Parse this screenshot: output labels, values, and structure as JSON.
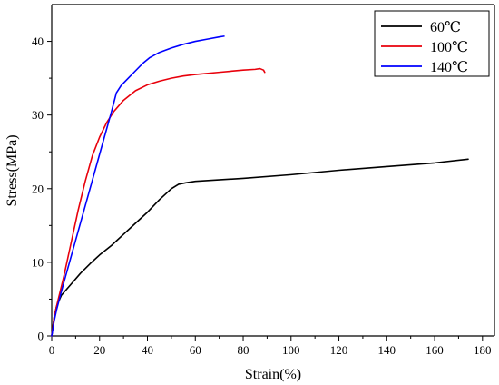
{
  "chart_data": {
    "type": "line",
    "xlabel": "Strain(%)",
    "ylabel": "Stress(MPa)",
    "xlim": [
      0,
      185
    ],
    "ylim": [
      0,
      45
    ],
    "xticks": [
      0,
      20,
      40,
      60,
      80,
      100,
      120,
      140,
      160,
      180
    ],
    "yticks": [
      0,
      10,
      20,
      30,
      40
    ],
    "grid": false,
    "legend_position": "top-right",
    "series": [
      {
        "name": "60℃",
        "color": "#000000",
        "points": [
          [
            0,
            0
          ],
          [
            1,
            2.5
          ],
          [
            2,
            4
          ],
          [
            4,
            5.5
          ],
          [
            8,
            7
          ],
          [
            12,
            8.5
          ],
          [
            16,
            9.8
          ],
          [
            20,
            11
          ],
          [
            25,
            12.3
          ],
          [
            30,
            13.8
          ],
          [
            35,
            15.3
          ],
          [
            40,
            16.8
          ],
          [
            45,
            18.5
          ],
          [
            50,
            20
          ],
          [
            53,
            20.6
          ],
          [
            56,
            20.8
          ],
          [
            60,
            21
          ],
          [
            80,
            21.4
          ],
          [
            100,
            21.9
          ],
          [
            120,
            22.5
          ],
          [
            140,
            23
          ],
          [
            160,
            23.5
          ],
          [
            174,
            24
          ]
        ]
      },
      {
        "name": "100℃",
        "color": "#e8000b",
        "points": [
          [
            0,
            0
          ],
          [
            1,
            2.5
          ],
          [
            2,
            4
          ],
          [
            5,
            8
          ],
          [
            8,
            12.5
          ],
          [
            11,
            17
          ],
          [
            14,
            21
          ],
          [
            17,
            24.5
          ],
          [
            20,
            27
          ],
          [
            23,
            29
          ],
          [
            26,
            30.5
          ],
          [
            30,
            32
          ],
          [
            35,
            33.3
          ],
          [
            40,
            34.1
          ],
          [
            45,
            34.6
          ],
          [
            50,
            35
          ],
          [
            55,
            35.3
          ],
          [
            60,
            35.5
          ],
          [
            70,
            35.8
          ],
          [
            80,
            36.1
          ],
          [
            85,
            36.2
          ],
          [
            87,
            36.3
          ],
          [
            88.5,
            36.1
          ],
          [
            89,
            35.8
          ]
        ]
      },
      {
        "name": "140℃",
        "color": "#0000ff",
        "points": [
          [
            0,
            0
          ],
          [
            1,
            2
          ],
          [
            2,
            3.5
          ],
          [
            4,
            6
          ],
          [
            7,
            9.5
          ],
          [
            10,
            13
          ],
          [
            13,
            16.5
          ],
          [
            16,
            20
          ],
          [
            19,
            23.5
          ],
          [
            22,
            27
          ],
          [
            25,
            30.5
          ],
          [
            27,
            33
          ],
          [
            29,
            34
          ],
          [
            32,
            35
          ],
          [
            35,
            36
          ],
          [
            38,
            37
          ],
          [
            41,
            37.8
          ],
          [
            45,
            38.5
          ],
          [
            50,
            39.1
          ],
          [
            55,
            39.6
          ],
          [
            60,
            40
          ],
          [
            65,
            40.3
          ],
          [
            70,
            40.6
          ],
          [
            72,
            40.7
          ]
        ]
      }
    ]
  }
}
